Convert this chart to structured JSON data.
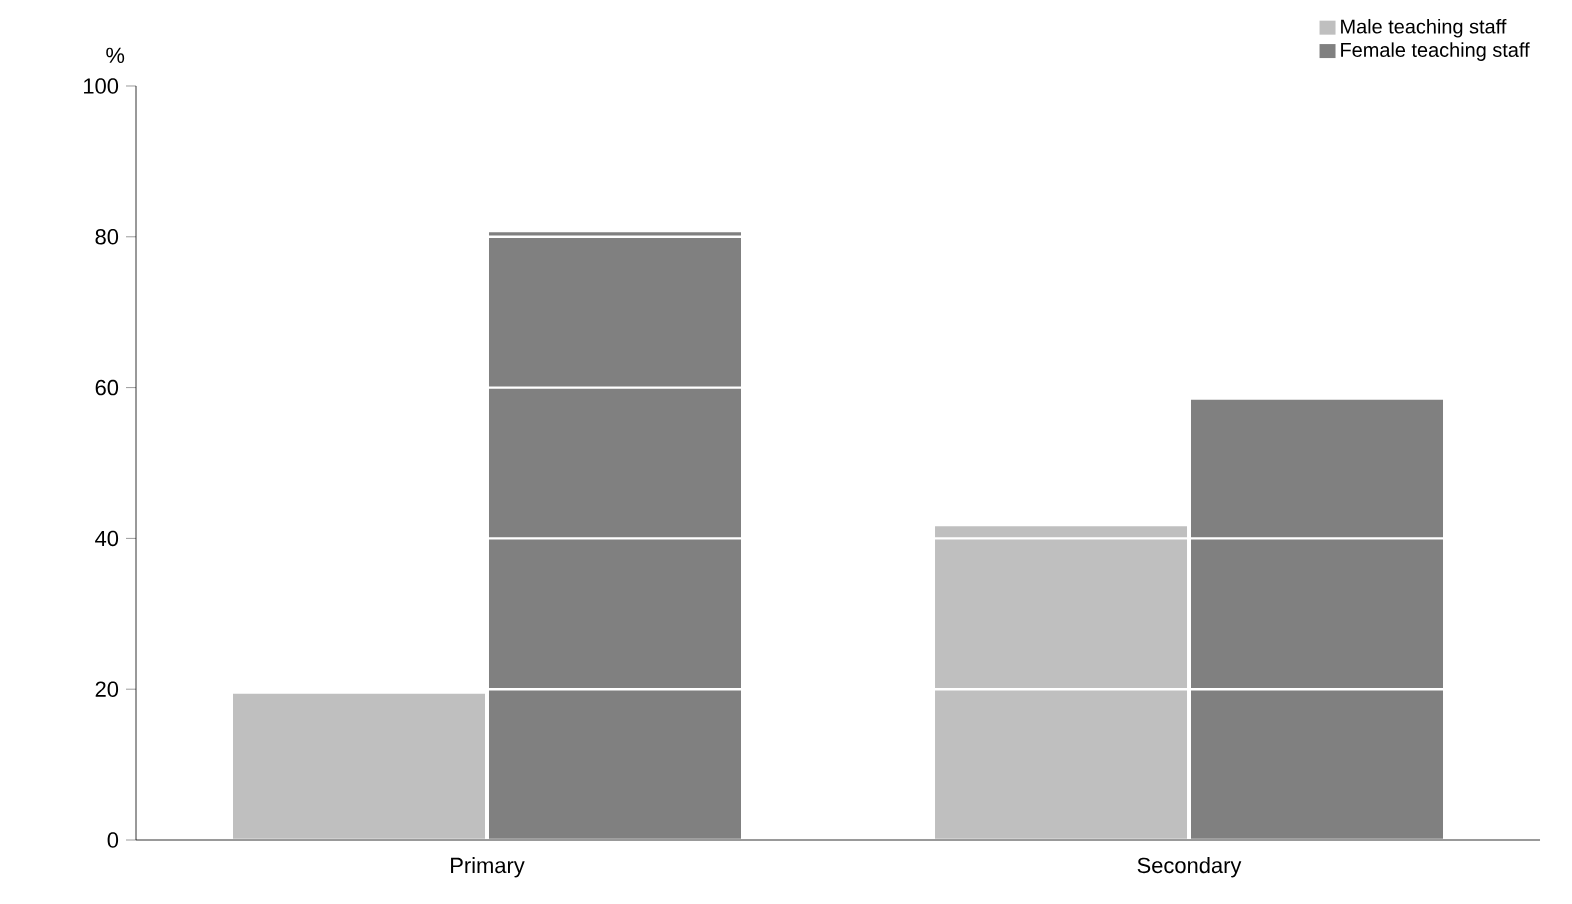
{
  "chart_data": {
    "type": "bar",
    "ylabel": "%",
    "categories": [
      "Primary",
      "Secondary"
    ],
    "series": [
      {
        "name": "Male teaching staff",
        "color": "#bfbfbf",
        "values": [
          19.4,
          41.6
        ]
      },
      {
        "name": "Female teaching staff",
        "color": "#808080",
        "values": [
          80.6,
          58.4
        ]
      }
    ],
    "ylim": [
      0,
      100
    ],
    "yticks": [
      0,
      20,
      40,
      60,
      80,
      100
    ],
    "grid": "y",
    "legend": "top right"
  }
}
